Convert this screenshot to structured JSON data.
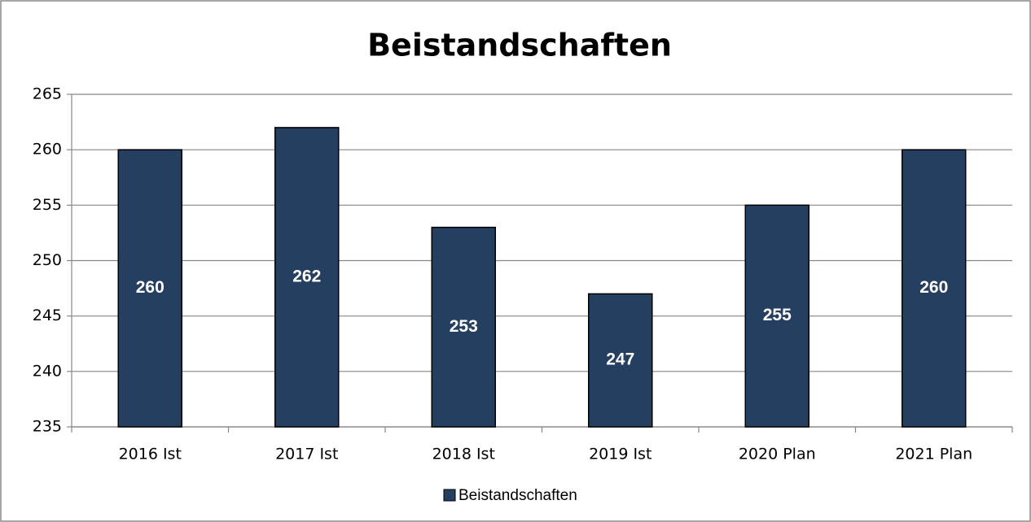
{
  "chart_data": {
    "type": "bar",
    "title": "Beistandschaften",
    "categories": [
      "2016 Ist",
      "2017 Ist",
      "2018 Ist",
      "2019 Ist",
      "2020 Plan",
      "2021 Plan"
    ],
    "series": [
      {
        "name": "Beistandschaften",
        "color": "#243f60",
        "values": [
          260,
          262,
          253,
          247,
          255,
          260
        ]
      }
    ],
    "ylim": [
      235,
      265
    ],
    "yticks": [
      235,
      240,
      245,
      250,
      255,
      260,
      265
    ],
    "grid": true,
    "legend": "bottom"
  }
}
